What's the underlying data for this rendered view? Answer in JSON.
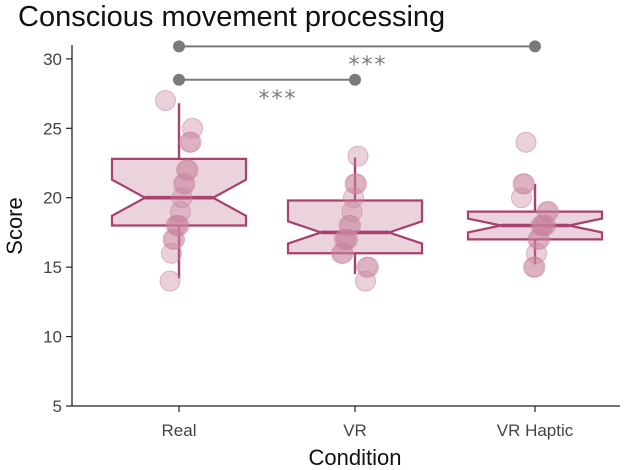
{
  "chart_data": {
    "type": "boxplot",
    "title": "Conscious movement processing",
    "xlabel": "Condition",
    "ylabel": "Score",
    "ylim": [
      5,
      31
    ],
    "yticks": [
      5,
      10,
      15,
      20,
      25,
      30
    ],
    "categories": [
      "Real",
      "VR",
      "VR Haptic"
    ],
    "grid": false,
    "notched": true,
    "color": "#a8416e",
    "box_fill": "#e7cbd8",
    "point_color": "#c9839f",
    "significance_color": "#7a7a7a",
    "boxes": [
      {
        "category": "Real",
        "q1": 18,
        "median": 20,
        "q3": 22.8,
        "notch_low": 18.7,
        "notch_high": 21.3,
        "whisker_low": 14.2,
        "whisker_high": 26.8
      },
      {
        "category": "VR",
        "q1": 16,
        "median": 17.5,
        "q3": 19.8,
        "notch_low": 16.7,
        "notch_high": 18.3,
        "whisker_low": 14.5,
        "whisker_high": 22.9
      },
      {
        "category": "VR Haptic",
        "q1": 17,
        "median": 18,
        "q3": 19,
        "notch_low": 17.5,
        "notch_high": 18.5,
        "whisker_low": 15.2,
        "whisker_high": 21
      }
    ],
    "points": [
      {
        "category": "Real",
        "values": [
          27,
          25,
          24,
          24,
          22,
          22,
          21,
          21,
          20,
          19,
          18,
          18,
          18,
          17,
          17,
          16,
          14
        ]
      },
      {
        "category": "VR",
        "values": [
          23,
          21,
          21,
          20,
          19,
          18,
          18,
          17,
          17,
          17,
          16,
          16,
          15,
          15,
          14
        ]
      },
      {
        "category": "VR Haptic",
        "values": [
          24,
          21,
          21,
          20,
          19,
          19,
          18,
          18,
          18,
          18,
          17,
          17,
          16,
          15,
          15
        ]
      }
    ],
    "significance": [
      {
        "from": "Real",
        "to": "VR Haptic",
        "y": 30.9,
        "label": "***"
      },
      {
        "from": "Real",
        "to": "VR",
        "y": 28.5,
        "label": "***"
      }
    ]
  }
}
